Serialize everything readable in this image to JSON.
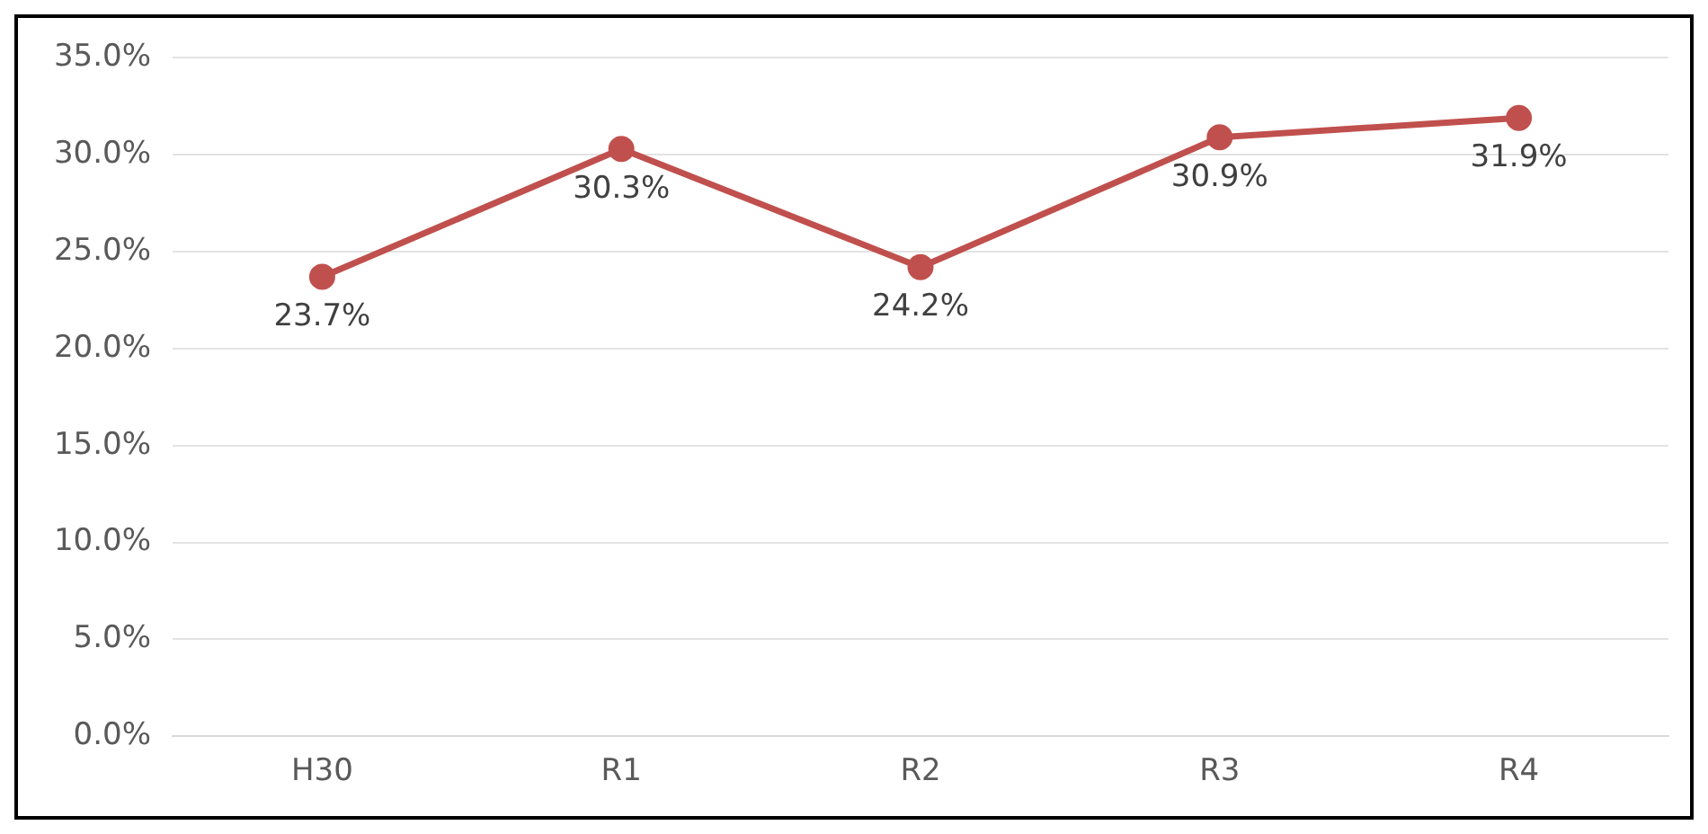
{
  "chart_data": {
    "type": "line",
    "categories": [
      "H30",
      "R1",
      "R2",
      "R3",
      "R4"
    ],
    "series": [
      {
        "color": "#c0504d",
        "values": [
          23.7,
          30.3,
          24.2,
          30.9,
          31.9
        ],
        "value_labels": [
          "23.7%",
          "30.3%",
          "24.2%",
          "30.9%",
          "31.9%"
        ]
      }
    ],
    "ylim": [
      0,
      35
    ],
    "yticks": [
      {
        "value": 0,
        "label": "0.0%"
      },
      {
        "value": 5,
        "label": "5.0%"
      },
      {
        "value": 10,
        "label": "10.0%"
      },
      {
        "value": 15,
        "label": "15.0%"
      },
      {
        "value": 20,
        "label": "20.0%"
      },
      {
        "value": 25,
        "label": "25.0%"
      },
      {
        "value": 30,
        "label": "30.0%"
      },
      {
        "value": 35,
        "label": "35.0%"
      }
    ],
    "grid": "y",
    "marker": "circle",
    "line_style": "solid",
    "legend": false
  }
}
